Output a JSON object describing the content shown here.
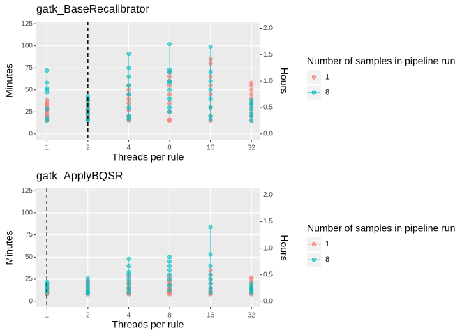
{
  "chart_data": [
    {
      "type": "scatter",
      "title": "gatk_BaseRecalibrator",
      "x_label": "Threads per rule",
      "y_label": "Minutes",
      "y2_label": "Hours",
      "legend_title": "Number of samples in pipeline run",
      "legend": "right",
      "grid": true,
      "xscale": "log",
      "vline": 2,
      "xlim": [
        0.835,
        36.8
      ],
      "xticks": [
        1,
        2,
        4,
        8,
        16,
        32
      ],
      "ylim": [
        -6.5,
        127.5
      ],
      "yticks": [
        0,
        25,
        50,
        75,
        100,
        125
      ],
      "y2lim": [
        -0.108,
        2.125
      ],
      "y2ticks": [
        {
          "value": 0,
          "label": "0.0"
        },
        0.5,
        {
          "value": 1,
          "label": "1.0"
        },
        1.5,
        {
          "value": 2,
          "label": "2.0"
        }
      ],
      "series": [
        {
          "name": "1",
          "color": "#F8766D",
          "x": [
            1,
            1,
            1,
            1,
            1,
            1,
            1,
            1,
            1,
            1,
            1,
            2,
            2,
            2,
            2,
            2,
            2,
            2,
            2,
            2,
            4,
            4,
            4,
            4,
            4,
            4,
            4,
            4,
            4,
            8,
            8,
            8,
            8,
            8,
            8,
            8,
            8,
            8,
            16,
            16,
            16,
            16,
            16,
            16,
            16,
            16,
            32,
            32,
            32,
            32,
            32,
            32,
            32,
            32,
            32,
            32
          ],
          "y": [
            15,
            17,
            20,
            22,
            25,
            27,
            29,
            30,
            33,
            35,
            38,
            15,
            17,
            20,
            23,
            25,
            27,
            30,
            35,
            38,
            15,
            17,
            20,
            27,
            35,
            40,
            45,
            50,
            55,
            15,
            16,
            25,
            35,
            45,
            55,
            60,
            65,
            70,
            15,
            20,
            30,
            45,
            55,
            65,
            80,
            85,
            15,
            20,
            25,
            30,
            35,
            40,
            45,
            50,
            55,
            58
          ]
        },
        {
          "name": "8",
          "color": "#00BFC4",
          "x": [
            1,
            1,
            1,
            1,
            1,
            1,
            1,
            1,
            2,
            2,
            2,
            2,
            2,
            2,
            2,
            2,
            2,
            4,
            4,
            4,
            4,
            4,
            4,
            4,
            4,
            8,
            8,
            8,
            8,
            8,
            8,
            8,
            8,
            8,
            16,
            16,
            16,
            16,
            16,
            16,
            16,
            16,
            32,
            32,
            32,
            32,
            32,
            32,
            32
          ],
          "y": [
            15,
            18,
            28,
            47,
            50,
            52,
            58,
            72,
            15,
            17,
            22,
            25,
            28,
            33,
            38,
            40,
            43,
            17,
            20,
            30,
            45,
            55,
            65,
            75,
            91,
            25,
            30,
            40,
            50,
            58,
            60,
            70,
            73,
            102,
            16,
            20,
            30,
            40,
            50,
            60,
            70,
            99,
            15,
            20,
            23,
            28,
            33,
            35,
            38
          ]
        }
      ]
    },
    {
      "type": "scatter",
      "title": "gatk_ApplyBQSR",
      "x_label": "Threads per rule",
      "y_label": "Minutes",
      "y2_label": "Hours",
      "legend_title": "Number of samples in pipeline run",
      "legend": "right",
      "grid": true,
      "xscale": "log",
      "vline": 1,
      "xlim": [
        0.835,
        36.8
      ],
      "xticks": [
        1,
        2,
        4,
        8,
        16,
        32
      ],
      "ylim": [
        -6.5,
        127.5
      ],
      "yticks": [
        0,
        25,
        50,
        75,
        100,
        125
      ],
      "y2lim": [
        -0.108,
        2.125
      ],
      "y2ticks": [
        {
          "value": 0,
          "label": "0.0"
        },
        0.5,
        {
          "value": 1,
          "label": "1.0"
        },
        1.5,
        {
          "value": 2,
          "label": "2.0"
        }
      ],
      "series": [
        {
          "name": "1",
          "color": "#F8766D",
          "x": [
            1,
            1,
            1,
            1,
            1,
            1,
            2,
            2,
            2,
            2,
            2,
            2,
            2,
            4,
            4,
            4,
            4,
            4,
            4,
            4,
            8,
            8,
            8,
            8,
            8,
            8,
            8,
            8,
            16,
            16,
            16,
            16,
            16,
            16,
            16,
            16,
            32,
            32,
            32,
            32,
            32,
            32,
            32,
            32
          ],
          "y": [
            8,
            10,
            12,
            14,
            16,
            18,
            8,
            10,
            12,
            15,
            18,
            20,
            23,
            8,
            10,
            13,
            15,
            18,
            22,
            28,
            8,
            10,
            13,
            15,
            18,
            20,
            23,
            28,
            8,
            10,
            12,
            15,
            20,
            25,
            30,
            35,
            8,
            10,
            13,
            15,
            18,
            22,
            25,
            27
          ]
        },
        {
          "name": "8",
          "color": "#00BFC4",
          "x": [
            1,
            1,
            1,
            1,
            1,
            1,
            2,
            2,
            2,
            2,
            2,
            2,
            2,
            4,
            4,
            4,
            4,
            4,
            4,
            4,
            4,
            8,
            8,
            8,
            8,
            8,
            8,
            8,
            8,
            16,
            16,
            16,
            16,
            16,
            16,
            16,
            16,
            32,
            32,
            32,
            32,
            32,
            32
          ],
          "y": [
            10,
            13,
            15,
            18,
            20,
            22,
            9,
            10,
            12,
            15,
            18,
            22,
            26,
            10,
            15,
            20,
            25,
            30,
            33,
            40,
            48,
            12,
            18,
            25,
            30,
            35,
            40,
            45,
            50,
            10,
            15,
            20,
            25,
            30,
            40,
            53,
            84,
            10,
            12,
            14,
            15,
            17,
            20
          ]
        }
      ]
    }
  ]
}
